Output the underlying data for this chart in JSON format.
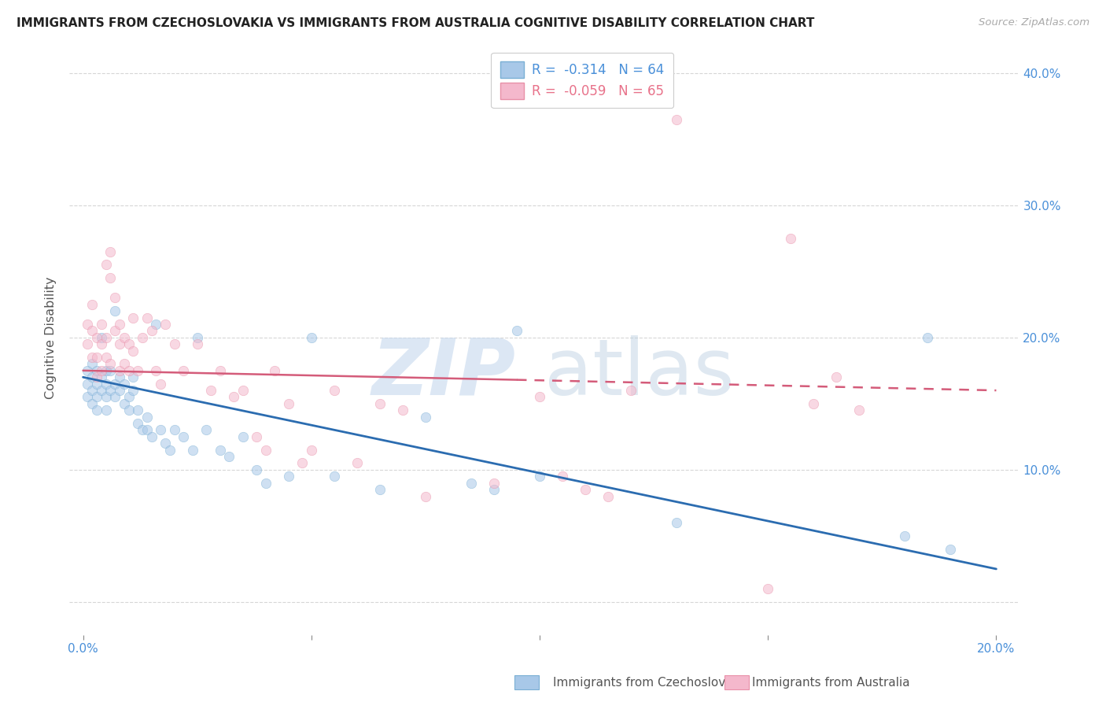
{
  "title": "IMMIGRANTS FROM CZECHOSLOVAKIA VS IMMIGRANTS FROM AUSTRALIA COGNITIVE DISABILITY CORRELATION CHART",
  "source": "Source: ZipAtlas.com",
  "ylabel": "Cognitive Disability",
  "y_ticks": [
    0.0,
    0.1,
    0.2,
    0.3,
    0.4
  ],
  "y_tick_labels": [
    "",
    "10.0%",
    "20.0%",
    "30.0%",
    "40.0%"
  ],
  "x_ticks": [
    0.0,
    0.05,
    0.1,
    0.15,
    0.2
  ],
  "x_tick_labels": [
    "0.0%",
    "",
    "",
    "",
    "20.0%"
  ],
  "xlim": [
    -0.003,
    0.205
  ],
  "ylim": [
    -0.025,
    0.425
  ],
  "legend_entries": [
    {
      "label": "R =  -0.314   N = 64",
      "color": "#a8c4e0",
      "line_color": "#4a90d9"
    },
    {
      "label": "R =  -0.059   N = 65",
      "color": "#f4b8c8",
      "line_color": "#e8728a"
    }
  ],
  "watermark_zip": "ZIP",
  "watermark_atlas": "atlas",
  "blue_scatter_x": [
    0.001,
    0.001,
    0.001,
    0.002,
    0.002,
    0.002,
    0.002,
    0.003,
    0.003,
    0.003,
    0.003,
    0.004,
    0.004,
    0.004,
    0.005,
    0.005,
    0.005,
    0.005,
    0.006,
    0.006,
    0.007,
    0.007,
    0.007,
    0.008,
    0.008,
    0.009,
    0.009,
    0.01,
    0.01,
    0.011,
    0.011,
    0.012,
    0.012,
    0.013,
    0.014,
    0.014,
    0.015,
    0.016,
    0.017,
    0.018,
    0.019,
    0.02,
    0.022,
    0.024,
    0.025,
    0.027,
    0.03,
    0.032,
    0.035,
    0.038,
    0.04,
    0.045,
    0.05,
    0.055,
    0.065,
    0.075,
    0.085,
    0.09,
    0.095,
    0.1,
    0.13,
    0.18,
    0.185,
    0.19
  ],
  "blue_scatter_y": [
    0.175,
    0.165,
    0.155,
    0.18,
    0.17,
    0.16,
    0.15,
    0.175,
    0.165,
    0.155,
    0.145,
    0.17,
    0.16,
    0.2,
    0.165,
    0.175,
    0.155,
    0.145,
    0.16,
    0.175,
    0.22,
    0.165,
    0.155,
    0.17,
    0.16,
    0.15,
    0.165,
    0.155,
    0.145,
    0.16,
    0.17,
    0.145,
    0.135,
    0.13,
    0.14,
    0.13,
    0.125,
    0.21,
    0.13,
    0.12,
    0.115,
    0.13,
    0.125,
    0.115,
    0.2,
    0.13,
    0.115,
    0.11,
    0.125,
    0.1,
    0.09,
    0.095,
    0.2,
    0.095,
    0.085,
    0.14,
    0.09,
    0.085,
    0.205,
    0.095,
    0.06,
    0.05,
    0.2,
    0.04
  ],
  "pink_scatter_x": [
    0.001,
    0.001,
    0.002,
    0.002,
    0.002,
    0.003,
    0.003,
    0.003,
    0.004,
    0.004,
    0.004,
    0.005,
    0.005,
    0.005,
    0.006,
    0.006,
    0.006,
    0.007,
    0.007,
    0.008,
    0.008,
    0.008,
    0.009,
    0.009,
    0.01,
    0.01,
    0.011,
    0.011,
    0.012,
    0.013,
    0.014,
    0.015,
    0.016,
    0.017,
    0.018,
    0.02,
    0.022,
    0.025,
    0.028,
    0.03,
    0.033,
    0.035,
    0.038,
    0.04,
    0.042,
    0.045,
    0.048,
    0.05,
    0.055,
    0.06,
    0.065,
    0.07,
    0.075,
    0.09,
    0.1,
    0.105,
    0.11,
    0.115,
    0.12,
    0.13,
    0.15,
    0.155,
    0.16,
    0.165,
    0.17
  ],
  "pink_scatter_y": [
    0.21,
    0.195,
    0.225,
    0.205,
    0.185,
    0.2,
    0.185,
    0.17,
    0.21,
    0.195,
    0.175,
    0.255,
    0.2,
    0.185,
    0.265,
    0.245,
    0.18,
    0.23,
    0.205,
    0.21,
    0.195,
    0.175,
    0.2,
    0.18,
    0.195,
    0.175,
    0.215,
    0.19,
    0.175,
    0.2,
    0.215,
    0.205,
    0.175,
    0.165,
    0.21,
    0.195,
    0.175,
    0.195,
    0.16,
    0.175,
    0.155,
    0.16,
    0.125,
    0.115,
    0.175,
    0.15,
    0.105,
    0.115,
    0.16,
    0.105,
    0.15,
    0.145,
    0.08,
    0.09,
    0.155,
    0.095,
    0.085,
    0.08,
    0.16,
    0.365,
    0.01,
    0.275,
    0.15,
    0.17,
    0.145
  ],
  "blue_line": {
    "x0": 0.0,
    "x1": 0.2,
    "y0": 0.17,
    "y1": 0.025
  },
  "pink_line_solid": {
    "x0": 0.0,
    "x1": 0.095,
    "y0": 0.175,
    "y1": 0.168
  },
  "pink_line_dash": {
    "x0": 0.095,
    "x1": 0.2,
    "y0": 0.168,
    "y1": 0.16
  },
  "bg_color": "#ffffff",
  "grid_color": "#cccccc",
  "scatter_alpha": 0.55,
  "scatter_size": 80
}
